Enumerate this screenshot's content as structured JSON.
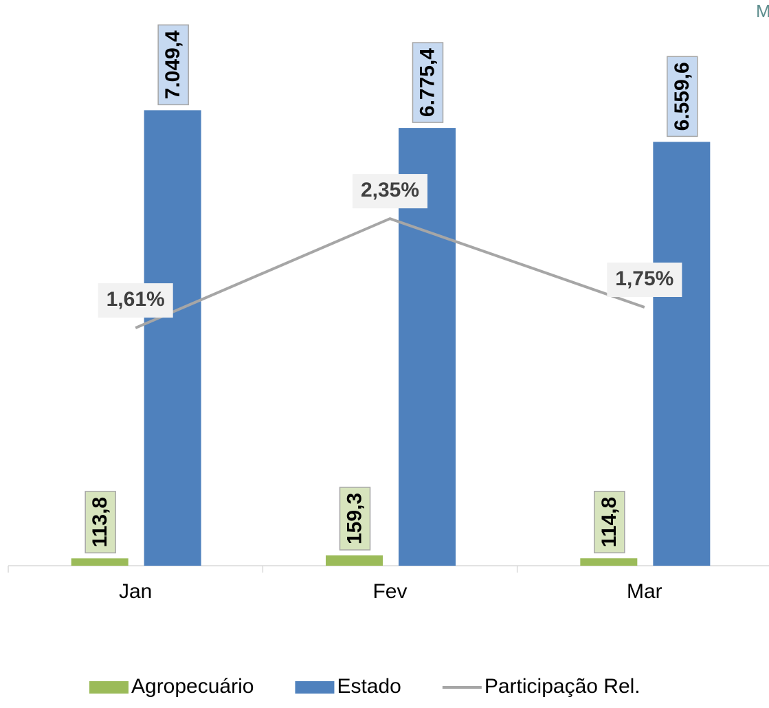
{
  "chart_data": {
    "type": "bar",
    "annotation": "M",
    "categories": [
      "Jan",
      "Fev",
      "Mar"
    ],
    "series": [
      {
        "name": "Agropecuário",
        "type": "bar",
        "color": "#9bbb59",
        "label_fill": "#d7e4bd",
        "values": [
          113.8,
          159.3,
          114.8
        ],
        "value_labels": [
          "113,8",
          "159,3",
          "114,8"
        ]
      },
      {
        "name": "Estado",
        "type": "bar",
        "color": "#4f81bd",
        "label_fill": "#c6d9f1",
        "values": [
          7049.4,
          6775.4,
          6559.6
        ],
        "value_labels": [
          "7.049,4",
          "6.775,4",
          "6.559,6"
        ]
      },
      {
        "name": "Participação Rel.",
        "type": "line",
        "axis": "y2",
        "color": "#a6a6a6",
        "label_fill": "#f2f2f2",
        "values": [
          1.61,
          2.35,
          1.75
        ],
        "value_labels": [
          "1,61%",
          "2,35%",
          "1,75%"
        ]
      }
    ],
    "ylim": [
      0,
      8000
    ],
    "y2lim": [
      0,
      3.5
    ],
    "legend": "bottom"
  }
}
